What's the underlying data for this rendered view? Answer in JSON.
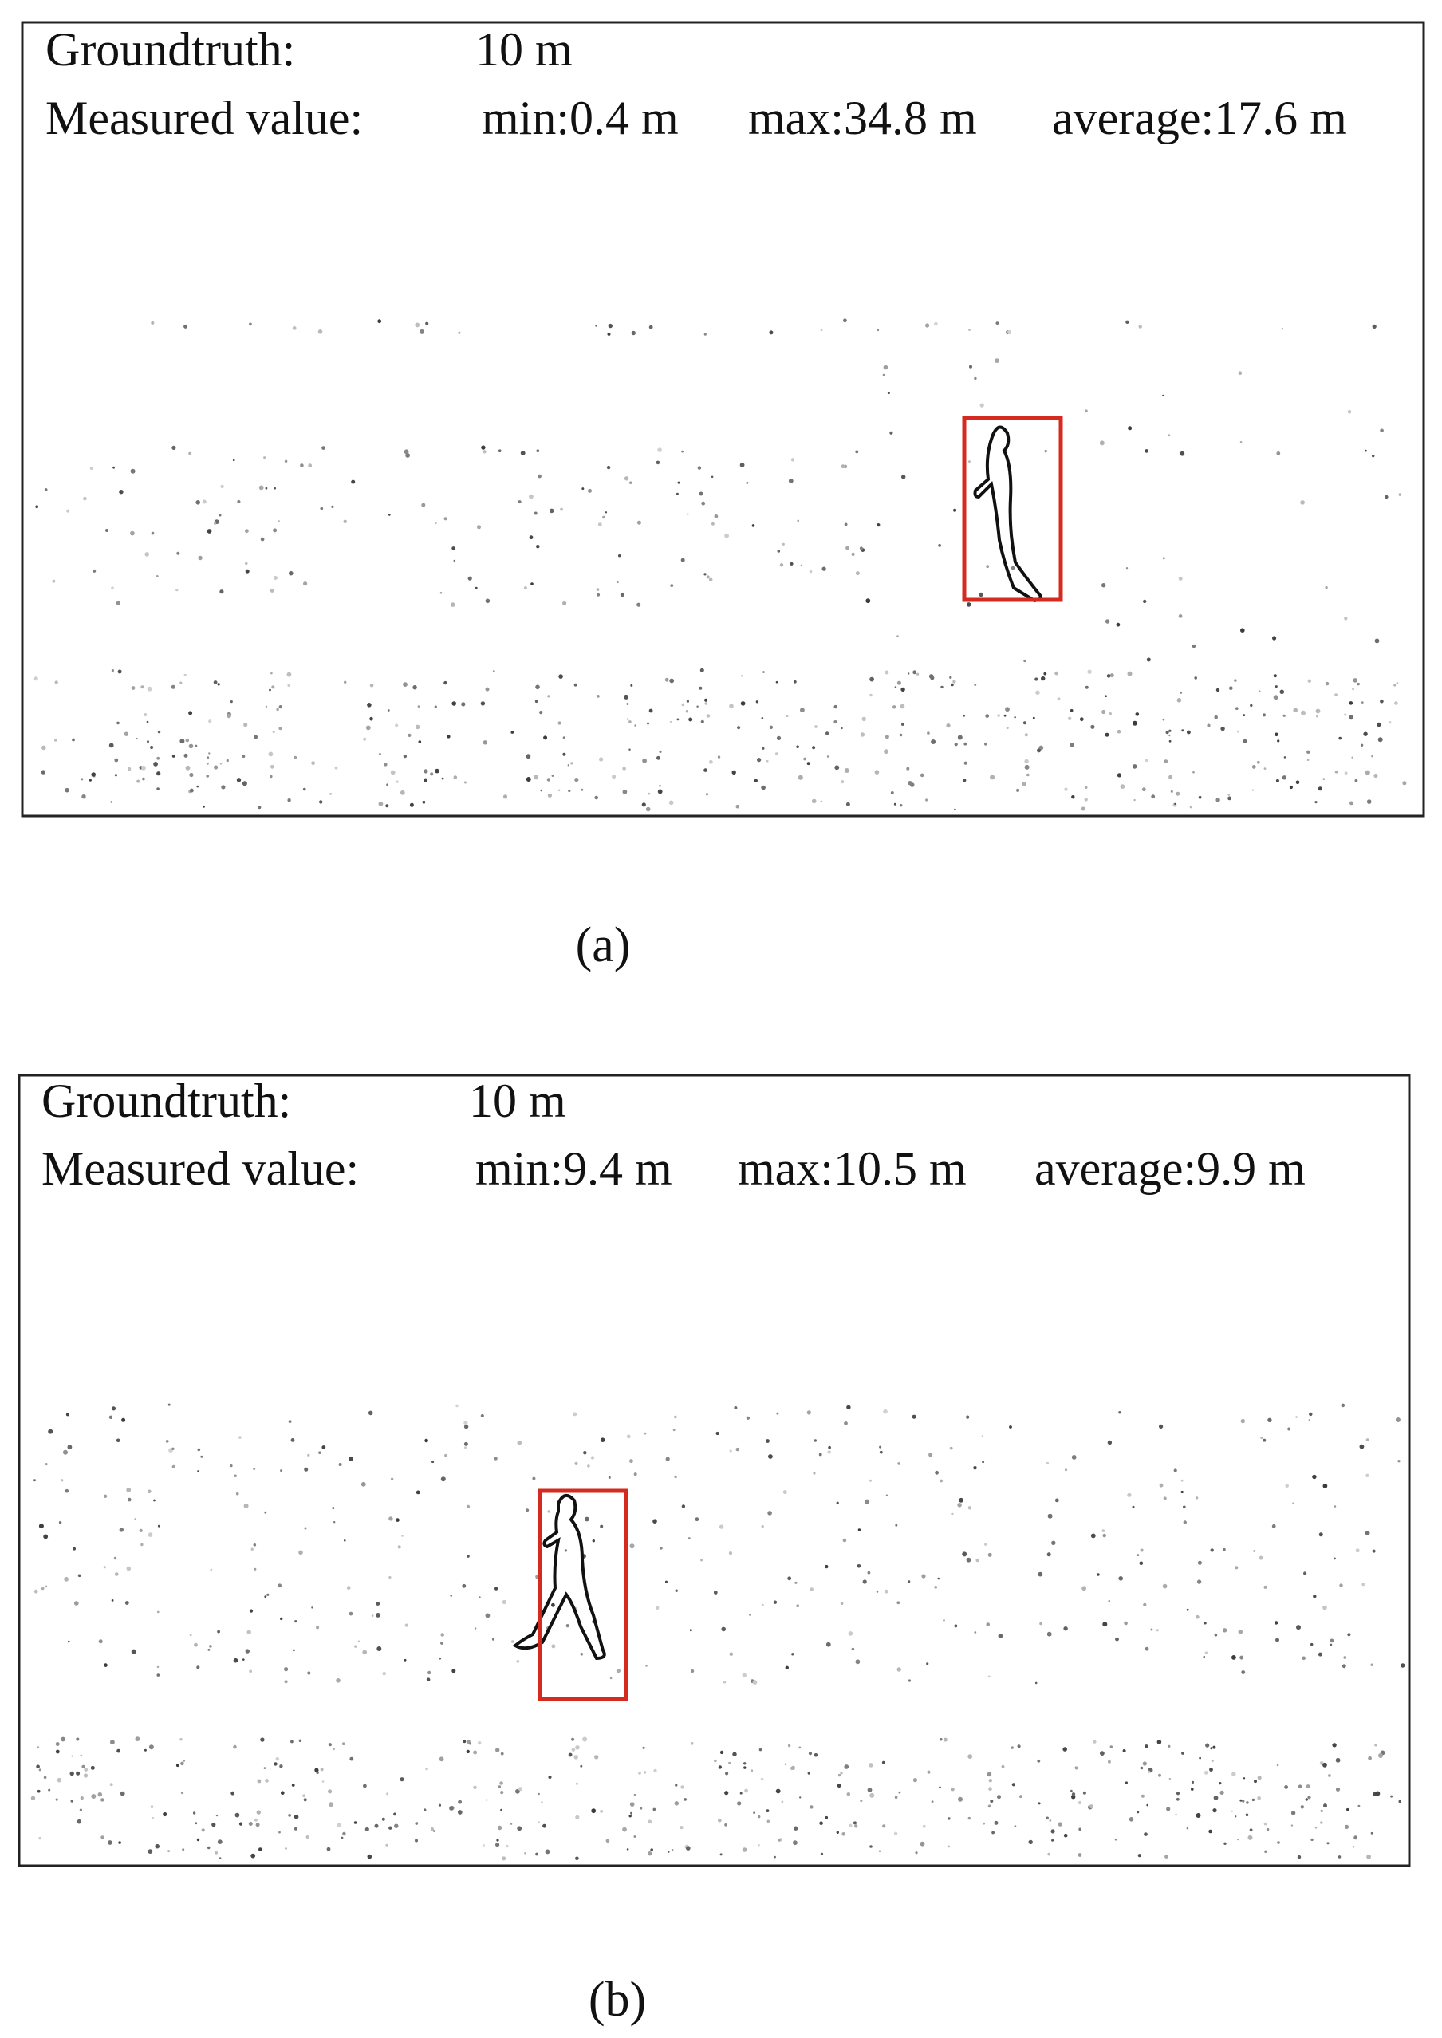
{
  "panels": [
    {
      "groundtruth_label": "Groundtruth:",
      "groundtruth": "10 m",
      "measured_label": "Measured value:",
      "min": "min:0.4 m",
      "max": "max:34.8 m",
      "average": "average:17.6 m",
      "caption": "(a)"
    },
    {
      "groundtruth_label": "Groundtruth:",
      "groundtruth": "10 m",
      "measured_label": "Measured value:",
      "min": "min:9.4 m",
      "max": "max:10.5 m",
      "average": "average:9.9 m",
      "caption": "(b)"
    }
  ]
}
